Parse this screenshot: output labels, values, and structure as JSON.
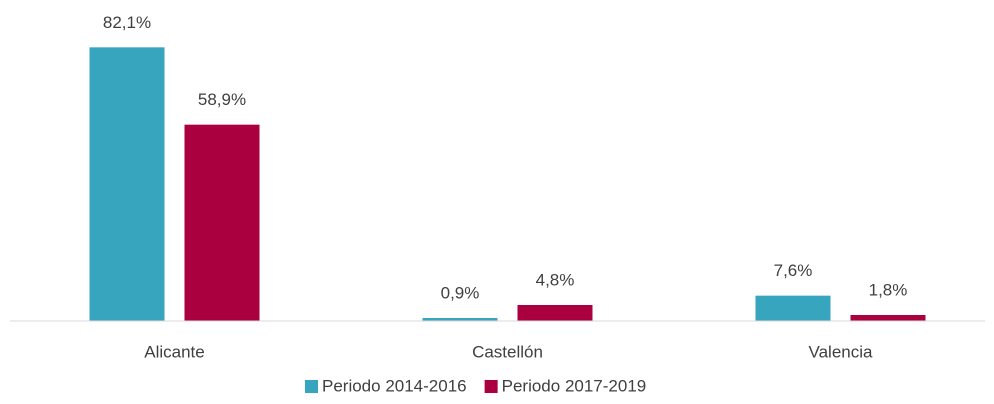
{
  "chart_data": {
    "type": "bar",
    "categories": [
      "Alicante",
      "Castellón",
      "Valencia"
    ],
    "series": [
      {
        "name": "Periodo 2014-2016",
        "color": "#36a5bd",
        "values": [
          82.1,
          0.9,
          7.6
        ],
        "value_labels": [
          "82,1%",
          "0,9%",
          "7,6%"
        ]
      },
      {
        "name": "Periodo 2017-2019",
        "color": "#ab0040",
        "values": [
          58.9,
          4.8,
          1.8
        ],
        "value_labels": [
          "58,9%",
          "4,8%",
          "1,8%"
        ]
      }
    ],
    "ylim": [
      0,
      90
    ]
  }
}
